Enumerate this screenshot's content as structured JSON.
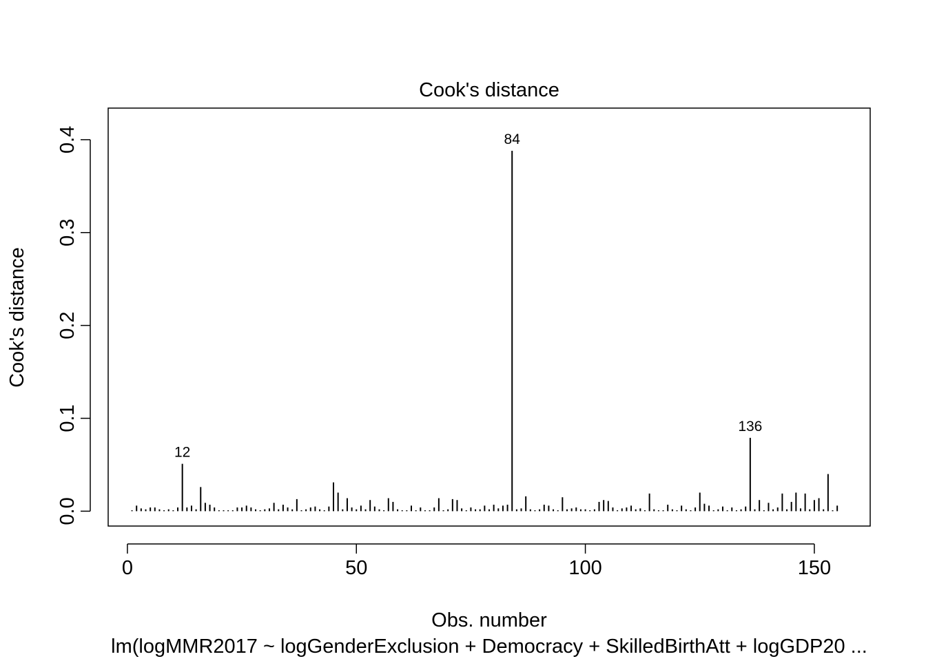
{
  "chart_data": {
    "type": "bar",
    "title": "Cook's distance",
    "xlabel": "Obs. number",
    "ylabel": "Cook's distance",
    "subtitle": "lm(logMMR2017 ~ logGenderExclusion + Democracy + SkilledBirthAtt + logGDP20 ...",
    "xlim": [
      -4.2,
      162.2
    ],
    "ylim": [
      -0.016,
      0.434
    ],
    "x_ticks": [
      0,
      50,
      100,
      150
    ],
    "y_ticks": [
      0.0,
      0.1,
      0.2,
      0.3,
      0.4
    ],
    "x_tick_labels": [
      "0",
      "50",
      "100",
      "150"
    ],
    "y_tick_labels": [
      "0.0",
      "0.1",
      "0.2",
      "0.3",
      "0.4"
    ],
    "grid": false,
    "legend": "none",
    "bar_style": "vertical-lines",
    "x": [
      1,
      2,
      3,
      4,
      5,
      6,
      7,
      8,
      9,
      10,
      11,
      12,
      13,
      14,
      15,
      16,
      17,
      18,
      19,
      20,
      21,
      22,
      23,
      24,
      25,
      26,
      27,
      28,
      29,
      30,
      31,
      32,
      33,
      34,
      35,
      36,
      37,
      38,
      39,
      40,
      41,
      42,
      43,
      44,
      45,
      46,
      47,
      48,
      49,
      50,
      51,
      52,
      53,
      54,
      55,
      56,
      57,
      58,
      59,
      60,
      61,
      62,
      63,
      64,
      65,
      66,
      67,
      68,
      69,
      70,
      71,
      72,
      73,
      74,
      75,
      76,
      77,
      78,
      79,
      80,
      81,
      82,
      83,
      84,
      85,
      86,
      87,
      88,
      89,
      90,
      91,
      92,
      93,
      94,
      95,
      96,
      97,
      98,
      99,
      100,
      101,
      102,
      103,
      104,
      105,
      106,
      107,
      108,
      109,
      110,
      111,
      112,
      113,
      114,
      115,
      116,
      117,
      118,
      119,
      120,
      121,
      122,
      123,
      124,
      125,
      126,
      127,
      128,
      129,
      130,
      131,
      132,
      133,
      134,
      135,
      136,
      137,
      138,
      139,
      140,
      141,
      142,
      143,
      144,
      145,
      146,
      147,
      148,
      149,
      150,
      151,
      152,
      153,
      154,
      155
    ],
    "values": [
      0.001,
      0.006,
      0.003,
      0.002,
      0.004,
      0.004,
      0.002,
      0.001,
      0.002,
      0.001,
      0.004,
      0.051,
      0.004,
      0.006,
      0.002,
      0.026,
      0.009,
      0.007,
      0.004,
      0.001,
      0.001,
      0.001,
      0.001,
      0.004,
      0.004,
      0.006,
      0.004,
      0.002,
      0.001,
      0.002,
      0.003,
      0.009,
      0.002,
      0.007,
      0.004,
      0.002,
      0.013,
      0.001,
      0.002,
      0.004,
      0.005,
      0.002,
      0.001,
      0.005,
      0.031,
      0.02,
      0.002,
      0.014,
      0.004,
      0.002,
      0.006,
      0.002,
      0.012,
      0.005,
      0.002,
      0.001,
      0.014,
      0.01,
      0.002,
      0.001,
      0.001,
      0.006,
      0.001,
      0.004,
      0.001,
      0.001,
      0.004,
      0.014,
      0.001,
      0.002,
      0.013,
      0.012,
      0.003,
      0.001,
      0.004,
      0.002,
      0.002,
      0.006,
      0.002,
      0.007,
      0.003,
      0.006,
      0.007,
      0.388,
      0.002,
      0.003,
      0.016,
      0.002,
      0.001,
      0.002,
      0.007,
      0.006,
      0.002,
      0.001,
      0.015,
      0.002,
      0.003,
      0.004,
      0.002,
      0.002,
      0.001,
      0.002,
      0.01,
      0.012,
      0.011,
      0.004,
      0.001,
      0.003,
      0.004,
      0.006,
      0.002,
      0.003,
      0.001,
      0.019,
      0.002,
      0.001,
      0.001,
      0.007,
      0.002,
      0.001,
      0.006,
      0.002,
      0.001,
      0.004,
      0.02,
      0.008,
      0.006,
      0.001,
      0.002,
      0.005,
      0.001,
      0.004,
      0.001,
      0.002,
      0.005,
      0.079,
      0.002,
      0.012,
      0.001,
      0.009,
      0.002,
      0.004,
      0.019,
      0.002,
      0.01,
      0.02,
      0.003,
      0.019,
      0.002,
      0.012,
      0.014,
      0.002,
      0.04,
      0.001,
      0.006
    ],
    "labeled_points": [
      {
        "x": 12,
        "label": "12"
      },
      {
        "x": 84,
        "label": "84"
      },
      {
        "x": 136,
        "label": "136"
      }
    ]
  }
}
